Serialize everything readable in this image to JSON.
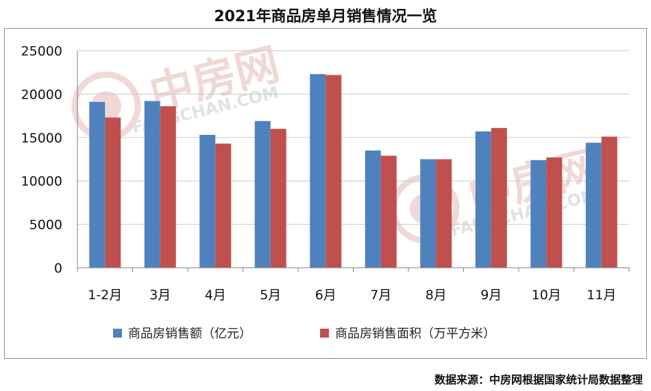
{
  "title": "2021年商品房单月销售情况一览",
  "source": "数据来源：中房网根据国家统计局数据整理",
  "watermark": {
    "brand": "中房网",
    "url": "FANGCHAN.COM"
  },
  "colors": {
    "sales_amount": "#4f81bd",
    "sales_area": "#c0504d",
    "grid": "#c8c8c8",
    "axis": "#7f7f7f"
  },
  "chart_data": {
    "type": "bar",
    "title": "2021年商品房单月销售情况一览",
    "categories": [
      "1-2月",
      "3月",
      "4月",
      "5月",
      "6月",
      "7月",
      "8月",
      "9月",
      "10月",
      "11月"
    ],
    "series": [
      {
        "name": "商品房销售额（亿元）",
        "values": [
          19100,
          19200,
          15300,
          16900,
          22300,
          13500,
          12500,
          15700,
          12400,
          14400
        ]
      },
      {
        "name": "商品房销售面积（万平方米）",
        "values": [
          17300,
          18600,
          14300,
          16000,
          22200,
          12900,
          12500,
          16100,
          12700,
          15100
        ]
      }
    ],
    "ylim": [
      0,
      25000
    ],
    "yticks": [
      "0",
      "5000",
      "10000",
      "15000",
      "20000",
      "25000"
    ],
    "grid": true,
    "legend": "bottom"
  }
}
